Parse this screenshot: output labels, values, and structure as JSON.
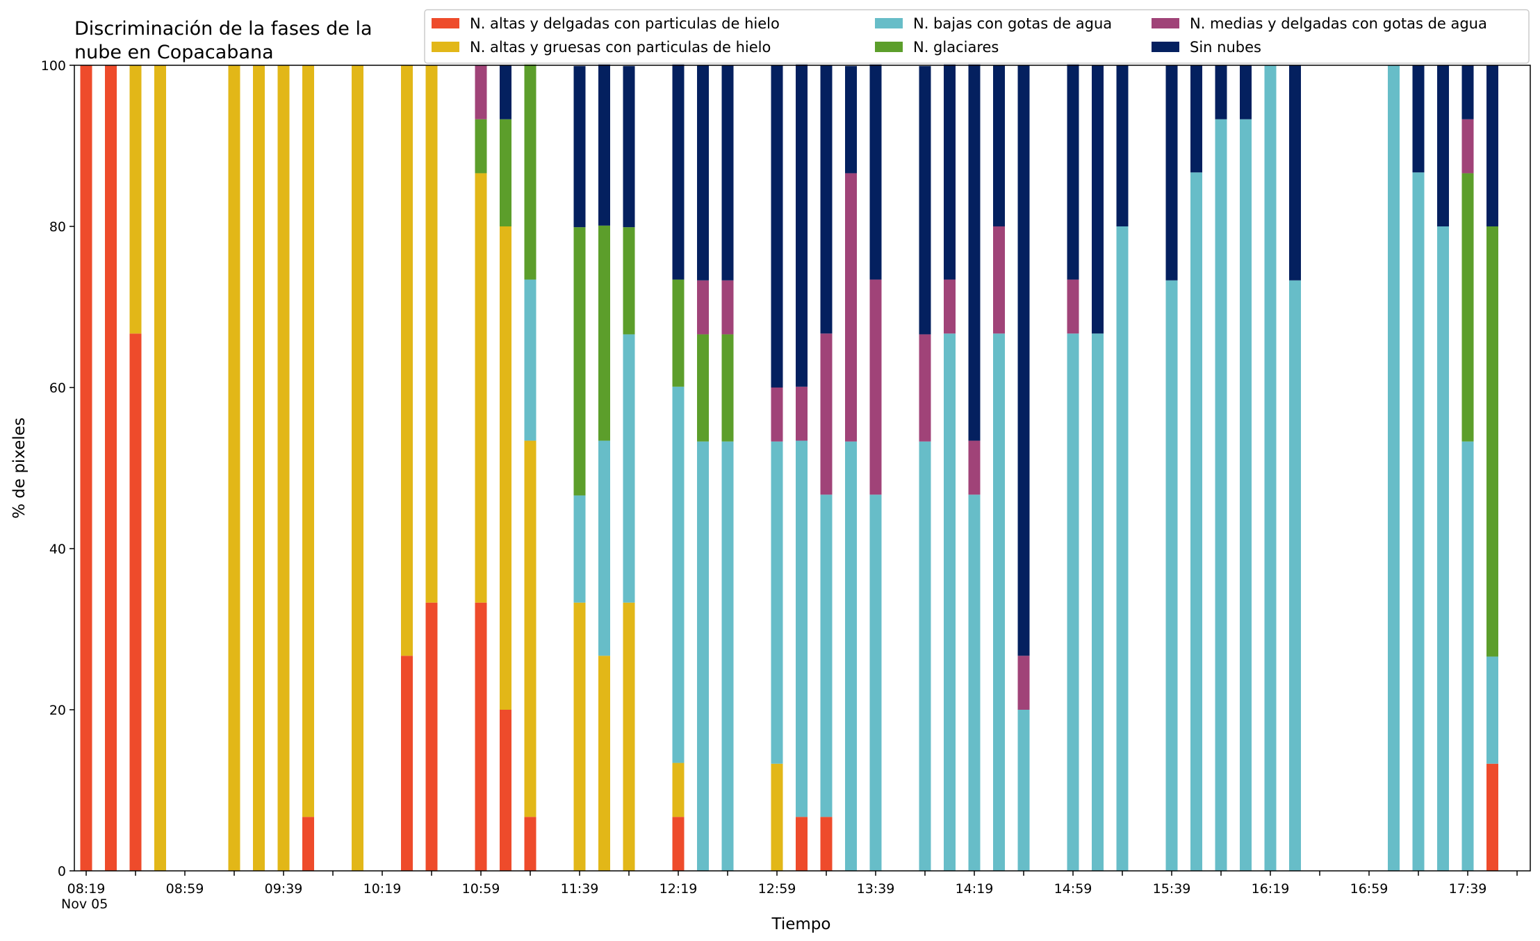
{
  "chart_data": {
    "type": "bar",
    "stacked": true,
    "title": "Discriminación de la fases de la\nnube en Copacabana",
    "xlabel": "Tiempo",
    "ylabel": "% de pixeles",
    "ylim": [
      0,
      100
    ],
    "yticks": [
      0,
      20,
      40,
      60,
      80,
      100
    ],
    "x_start_label": "08:19",
    "x_step_minutes": 10,
    "x_tick_labels": [
      "08:19",
      "08:59",
      "09:39",
      "10:19",
      "10:59",
      "11:39",
      "12:19",
      "12:59",
      "13:39",
      "14:19",
      "14:59",
      "15:39",
      "16:19",
      "16:59",
      "17:39"
    ],
    "x_date_label": "Nov 05",
    "legend_position": "top",
    "grid": false,
    "series": [
      {
        "name": "N. altas y delgadas con particulas de hielo",
        "color": "#ee4b2b",
        "values": [
          100,
          100,
          66.7,
          0,
          null,
          null,
          0,
          0,
          0,
          6.7,
          null,
          0,
          null,
          26.7,
          33.3,
          null,
          33.3,
          20,
          6.7,
          null,
          0,
          0,
          0,
          null,
          6.7,
          0,
          0,
          null,
          0,
          6.7,
          6.7,
          0,
          0,
          null,
          0,
          0,
          0,
          0,
          0,
          null,
          0,
          0,
          0,
          null,
          0,
          0,
          0,
          0,
          0,
          0,
          null,
          null,
          null,
          0,
          0,
          0,
          0,
          13.3
        ]
      },
      {
        "name": "N. altas y gruesas con particulas de hielo",
        "color": "#e2b718",
        "values": [
          0,
          0,
          33.3,
          100,
          null,
          null,
          100,
          100,
          100,
          93.3,
          null,
          100,
          null,
          73.3,
          66.7,
          null,
          53.3,
          60,
          46.7,
          null,
          33.3,
          26.7,
          33.3,
          null,
          6.7,
          0,
          0,
          null,
          13.3,
          0,
          0,
          0,
          0,
          null,
          0,
          0,
          0,
          0,
          0,
          null,
          0,
          0,
          0,
          null,
          0,
          0,
          0,
          0,
          0,
          0,
          null,
          null,
          null,
          0,
          0,
          0,
          0,
          0
        ]
      },
      {
        "name": "N. bajas con gotas de agua",
        "color": "#67bdc8",
        "values": [
          0,
          0,
          0,
          0,
          null,
          null,
          0,
          0,
          0,
          0,
          null,
          0,
          null,
          0,
          0,
          null,
          0,
          0,
          20,
          null,
          13.3,
          26.7,
          33.3,
          null,
          46.7,
          53.3,
          53.3,
          null,
          40,
          46.7,
          40,
          53.3,
          46.7,
          null,
          53.3,
          66.7,
          46.7,
          66.7,
          20,
          null,
          66.7,
          66.7,
          80,
          null,
          73.3,
          86.7,
          93.3,
          93.3,
          100,
          73.3,
          null,
          null,
          null,
          100,
          86.7,
          80,
          53.3,
          13.3
        ]
      },
      {
        "name": "N. glaciares",
        "color": "#5c9e2b",
        "values": [
          0,
          0,
          0,
          0,
          null,
          null,
          0,
          0,
          0,
          0,
          null,
          0,
          null,
          0,
          0,
          null,
          6.7,
          13.3,
          26.7,
          null,
          33.3,
          26.7,
          13.3,
          null,
          13.3,
          13.3,
          13.3,
          null,
          0,
          0,
          0,
          0,
          0,
          null,
          0,
          0,
          0,
          0,
          0,
          null,
          0,
          0,
          0,
          null,
          0,
          0,
          0,
          0,
          0,
          0,
          null,
          null,
          null,
          0,
          0,
          0,
          33.3,
          53.4
        ]
      },
      {
        "name": "N. medias y delgadas con gotas de agua",
        "color": "#a04378",
        "values": [
          0,
          0,
          0,
          0,
          null,
          null,
          0,
          0,
          0,
          0,
          null,
          0,
          null,
          0,
          0,
          null,
          6.7,
          0,
          0,
          null,
          0,
          0,
          0,
          null,
          0,
          6.7,
          6.7,
          null,
          6.7,
          6.7,
          20,
          33.3,
          26.7,
          null,
          13.3,
          6.7,
          6.7,
          13.3,
          6.7,
          null,
          6.7,
          0,
          0,
          null,
          0,
          0,
          0,
          0,
          0,
          0,
          null,
          null,
          null,
          0,
          0,
          0,
          6.7,
          0
        ]
      },
      {
        "name": "Sin nubes",
        "color": "#04205f",
        "values": [
          0,
          0,
          0,
          0,
          null,
          null,
          0,
          0,
          0,
          0,
          null,
          0,
          null,
          0,
          0,
          null,
          0,
          6.7,
          0,
          null,
          20,
          20,
          20,
          null,
          26.7,
          26.7,
          26.7,
          null,
          40,
          40,
          33.3,
          13.3,
          26.7,
          null,
          33.3,
          26.7,
          46.7,
          20,
          73.3,
          null,
          26.7,
          33.3,
          20,
          null,
          26.7,
          13.3,
          6.7,
          6.7,
          0,
          26.7,
          null,
          null,
          null,
          0,
          13.3,
          20,
          6.7,
          20
        ]
      }
    ]
  }
}
